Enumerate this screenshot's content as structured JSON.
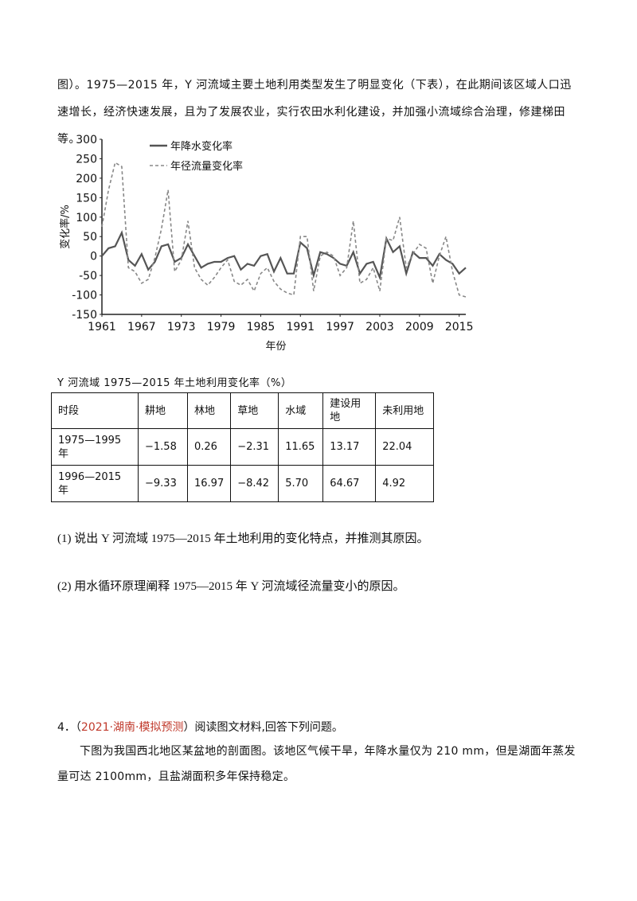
{
  "intro_text": "图）。1975—2015 年，Y 河流域主要土地利用类型发生了明显变化（下表），在此期间该区域人口迅速增长，经济快速发展，且为了发展农业，实行农田水利化建设，并加强小流域综合治理，修建梯田等。",
  "chart_data": {
    "type": "line",
    "ylabel": "变化率/%",
    "xlabel": "年份",
    "x_tick_labels": [
      "1961",
      "1967",
      "1973",
      "1979",
      "1985",
      "1991",
      "1997",
      "2003",
      "2009",
      "2015"
    ],
    "y_tick_labels": [
      "300",
      "250",
      "200",
      "150",
      "100",
      "50",
      "0",
      "-50",
      "-100",
      "-150"
    ],
    "ylim": [
      -150,
      300
    ],
    "xlim": [
      1961,
      2016
    ],
    "legend_position": "top-center",
    "x": [
      1961,
      1962,
      1963,
      1964,
      1965,
      1966,
      1967,
      1968,
      1969,
      1970,
      1971,
      1972,
      1973,
      1974,
      1975,
      1976,
      1977,
      1978,
      1979,
      1980,
      1981,
      1982,
      1983,
      1984,
      1985,
      1986,
      1987,
      1988,
      1989,
      1990,
      1991,
      1992,
      1993,
      1994,
      1995,
      1996,
      1997,
      1998,
      1999,
      2000,
      2001,
      2002,
      2003,
      2004,
      2005,
      2006,
      2007,
      2008,
      2009,
      2010,
      2011,
      2012,
      2013,
      2014,
      2015,
      2016
    ],
    "series": [
      {
        "name": "年降水变化率",
        "style": "solid",
        "color": "#555555",
        "values": [
          0,
          20,
          25,
          60,
          -10,
          -25,
          5,
          -35,
          -15,
          25,
          30,
          -15,
          -5,
          30,
          0,
          -30,
          -20,
          -15,
          -15,
          -5,
          0,
          -35,
          -20,
          -25,
          0,
          5,
          -40,
          -5,
          -45,
          -45,
          35,
          20,
          -50,
          10,
          5,
          -5,
          -20,
          -25,
          10,
          -45,
          -20,
          -15,
          -55,
          45,
          10,
          25,
          -45,
          10,
          -5,
          -5,
          -25,
          5,
          -10,
          -20,
          -45,
          -30
        ]
      },
      {
        "name": "年径流量变化率",
        "style": "dashed",
        "color": "#888888",
        "values": [
          75,
          170,
          240,
          230,
          -30,
          -40,
          -70,
          -60,
          -5,
          70,
          170,
          -40,
          -10,
          90,
          -30,
          -60,
          -75,
          -55,
          -30,
          -10,
          -65,
          -75,
          -60,
          -90,
          -45,
          -30,
          -65,
          -85,
          -95,
          -100,
          50,
          50,
          -90,
          0,
          10,
          0,
          -50,
          -30,
          90,
          -70,
          -60,
          -30,
          -90,
          45,
          40,
          100,
          -30,
          5,
          30,
          20,
          -70,
          0,
          50,
          -40,
          -100,
          -105
        ]
      }
    ]
  },
  "table": {
    "caption": "Y 河流域 1975—2015 年土地利用变化率（%）",
    "headers": [
      "时段",
      "耕地",
      "林地",
      "草地",
      "水域",
      "建设用地",
      "未利用地"
    ],
    "rows": [
      [
        "1975—1995 年",
        "−1.58",
        "0.26",
        "−2.31",
        "11.65",
        "13.17",
        "22.04"
      ],
      [
        "1996—2015 年",
        "−9.33",
        "16.97",
        "−8.42",
        "5.70",
        "64.67",
        "4.92"
      ]
    ]
  },
  "questions": {
    "q1": "(1) 说出 Y 河流域 1975—2015 年土地利用的变化特点，并推测其原因。",
    "q2": "(2) 用水循环原理阐释 1975—2015 年 Y 河流域径流量变小的原因。"
  },
  "problem4": {
    "number": "4．（",
    "source": "2021·湖南·模拟预测",
    "after": "）阅读图文材料,回答下列问题。",
    "body": "下图为我国西北地区某盆地的剖面图。该地区气候干旱，年降水量仅为 210 mm，但是湖面年蒸发量可达 2100mm，且盐湖面积多年保持稳定。"
  }
}
